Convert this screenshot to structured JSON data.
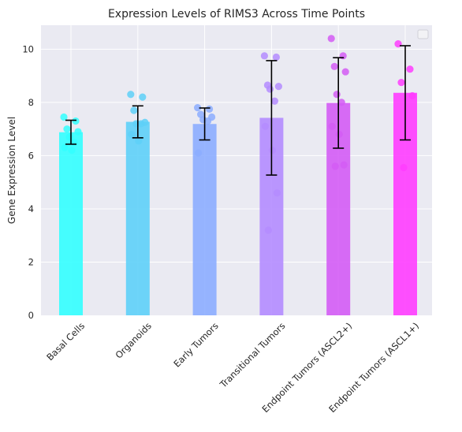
{
  "chart_data": {
    "type": "bar",
    "title": "Expression Levels of RIMS3 Across Time Points",
    "xlabel": "",
    "ylabel": "Gene Expression Level",
    "ylim": [
      0,
      10.9
    ],
    "yticks": [
      0,
      2,
      4,
      6,
      8,
      10
    ],
    "grid": true,
    "legend": "top-right (empty)",
    "categories": [
      "Basal Cells",
      "Organoids",
      "Early Tumors",
      "Transitional Tumors",
      "Endpoint Tumors (ASCL2+)",
      "Endpoint Tumors (ASCL1+)"
    ],
    "values": [
      6.88,
      7.27,
      7.19,
      7.42,
      7.98,
      8.36
    ],
    "errors": [
      0.45,
      0.6,
      0.6,
      2.15,
      1.7,
      1.77
    ],
    "colors": [
      "#33ffff",
      "#5ed0f8",
      "#8cadff",
      "#b48cff",
      "#d45cf5",
      "#ff3dff"
    ],
    "points": [
      [
        7.45,
        7.3,
        7.0,
        6.9,
        6.7,
        6.5,
        6.3,
        6.2
      ],
      [
        8.3,
        8.2,
        7.7,
        7.25,
        7.2,
        7.2,
        6.8,
        6.55
      ],
      [
        7.8,
        7.75,
        7.55,
        7.45,
        7.35,
        7.3,
        6.1
      ],
      [
        9.75,
        9.7,
        8.65,
        8.6,
        8.5,
        8.05,
        7.1,
        6.2,
        4.6,
        3.2
      ],
      [
        10.4,
        9.75,
        9.35,
        9.15,
        8.3,
        8.0,
        7.1,
        6.8,
        5.65,
        5.6
      ],
      [
        10.2,
        9.25,
        8.75,
        8.25,
        5.55
      ]
    ]
  }
}
